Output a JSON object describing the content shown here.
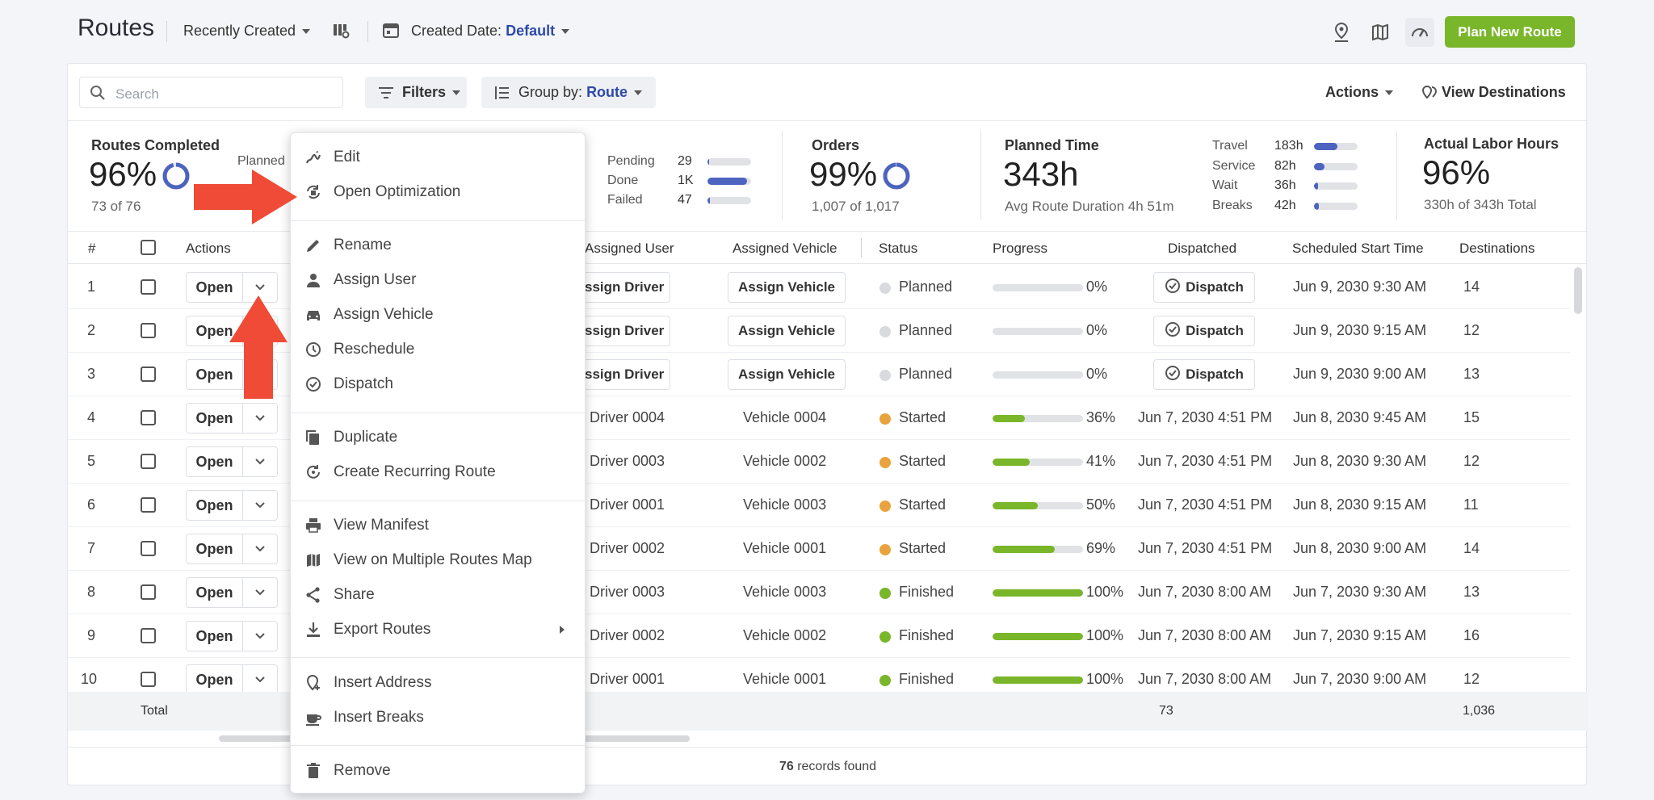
{
  "header": {
    "title": "Routes",
    "sort_label": "Recently Created",
    "date_filter_label": "Created Date:",
    "date_filter_value": "Default",
    "plan_button": "Plan New Route"
  },
  "toolbar": {
    "search_placeholder": "Search",
    "filters_label": "Filters",
    "group_by_label": "Group by:",
    "group_by_value": "Route",
    "actions_label": "Actions",
    "view_destinations_label": "View Destinations"
  },
  "stats": {
    "routes_completed": {
      "label": "Routes Completed",
      "value": "96%",
      "sub": "73 of 76",
      "planned_label": "Planned",
      "ring_fraction": 0.96
    },
    "destinations_metrics": [
      {
        "label": "Pending",
        "value": "29",
        "fraction": 0.03
      },
      {
        "label": "Done",
        "value": "1K",
        "fraction": 0.9
      },
      {
        "label": "Failed",
        "value": "47",
        "fraction": 0.05
      }
    ],
    "orders": {
      "label": "Orders",
      "value": "99%",
      "sub": "1,007 of 1,017",
      "ring_fraction": 0.99
    },
    "planned_time": {
      "label": "Planned Time",
      "value": "343h",
      "sub": "Avg Route Duration 4h 51m"
    },
    "time_metrics": [
      {
        "label": "Travel",
        "value": "183h",
        "fraction": 0.53
      },
      {
        "label": "Service",
        "value": "82h",
        "fraction": 0.24
      },
      {
        "label": "Wait",
        "value": "36h",
        "fraction": 0.1
      },
      {
        "label": "Breaks",
        "value": "42h",
        "fraction": 0.12
      }
    ],
    "labor": {
      "label": "Actual Labor Hours",
      "value": "96%",
      "sub": "330h of 343h Total"
    }
  },
  "table": {
    "columns": {
      "num": "#",
      "actions": "Actions",
      "user": "Assigned User",
      "vehicle": "Assigned Vehicle",
      "status": "Status",
      "progress": "Progress",
      "dispatched": "Dispatched",
      "start": "Scheduled Start Time",
      "destinations": "Destinations"
    },
    "open_label": "Open",
    "assign_driver_label": "Assign Driver",
    "assign_vehicle_label": "Assign Vehicle",
    "dispatch_label": "Dispatch",
    "rows": [
      {
        "num": "1",
        "user": "",
        "vehicle": "",
        "status": "Planned",
        "status_color": "#d9dadd",
        "progress": 0,
        "progress_text": "0%",
        "dispatched": "",
        "start": "Jun 9, 2030 9:30 AM",
        "dest": "14"
      },
      {
        "num": "2",
        "user": "",
        "vehicle": "",
        "status": "Planned",
        "status_color": "#d9dadd",
        "progress": 0,
        "progress_text": "0%",
        "dispatched": "",
        "start": "Jun 9, 2030 9:15 AM",
        "dest": "12"
      },
      {
        "num": "3",
        "user": "",
        "vehicle": "",
        "status": "Planned",
        "status_color": "#d9dadd",
        "progress": 0,
        "progress_text": "0%",
        "dispatched": "",
        "start": "Jun 9, 2030 9:00 AM",
        "dest": "13"
      },
      {
        "num": "4",
        "user": "Driver 0004",
        "vehicle": "Vehicle 0004",
        "status": "Started",
        "status_color": "#e9a33e",
        "progress": 0.36,
        "progress_text": "36%",
        "dispatched": "Jun 7, 2030 4:51 PM",
        "start": "Jun 8, 2030 9:45 AM",
        "dest": "15"
      },
      {
        "num": "5",
        "user": "Driver 0003",
        "vehicle": "Vehicle 0002",
        "status": "Started",
        "status_color": "#e9a33e",
        "progress": 0.41,
        "progress_text": "41%",
        "dispatched": "Jun 7, 2030 4:51 PM",
        "start": "Jun 8, 2030 9:30 AM",
        "dest": "12"
      },
      {
        "num": "6",
        "user": "Driver 0001",
        "vehicle": "Vehicle 0003",
        "status": "Started",
        "status_color": "#e9a33e",
        "progress": 0.5,
        "progress_text": "50%",
        "dispatched": "Jun 7, 2030 4:51 PM",
        "start": "Jun 8, 2030 9:15 AM",
        "dest": "11"
      },
      {
        "num": "7",
        "user": "Driver 0002",
        "vehicle": "Vehicle 0001",
        "status": "Started",
        "status_color": "#e9a33e",
        "progress": 0.69,
        "progress_text": "69%",
        "dispatched": "Jun 7, 2030 4:51 PM",
        "start": "Jun 8, 2030 9:00 AM",
        "dest": "14"
      },
      {
        "num": "8",
        "user": "Driver 0003",
        "vehicle": "Vehicle 0003",
        "status": "Finished",
        "status_color": "#79b62a",
        "progress": 1,
        "progress_text": "100%",
        "dispatched": "Jun 7, 2030 8:00 AM",
        "start": "Jun 7, 2030 9:30 AM",
        "dest": "13"
      },
      {
        "num": "9",
        "user": "Driver 0002",
        "vehicle": "Vehicle 0002",
        "status": "Finished",
        "status_color": "#79b62a",
        "progress": 1,
        "progress_text": "100%",
        "dispatched": "Jun 7, 2030 8:00 AM",
        "start": "Jun 7, 2030 9:15 AM",
        "dest": "16"
      },
      {
        "num": "10",
        "user": "Driver 0001",
        "vehicle": "Vehicle 0001",
        "status": "Finished",
        "status_color": "#79b62a",
        "progress": 1,
        "progress_text": "100%",
        "dispatched": "Jun 7, 2030 8:00 AM",
        "start": "Jun 7, 2030 9:00 AM",
        "dest": "12"
      }
    ],
    "total": {
      "label": "Total",
      "dispatched_total": "73",
      "destinations_total": "1,036"
    },
    "records_count": "76",
    "records_label": "records found"
  },
  "context_menu": {
    "items": [
      {
        "label": "Edit",
        "icon": "edit-route-icon"
      },
      {
        "label": "Open Optimization",
        "icon": "optimization-icon"
      },
      {
        "label": "Rename",
        "icon": "pencil-icon"
      },
      {
        "label": "Assign User",
        "icon": "user-icon"
      },
      {
        "label": "Assign Vehicle",
        "icon": "car-icon"
      },
      {
        "label": "Reschedule",
        "icon": "clock-icon"
      },
      {
        "label": "Dispatch",
        "icon": "dispatch-check-icon"
      },
      {
        "label": "Duplicate",
        "icon": "duplicate-icon"
      },
      {
        "label": "Create Recurring Route",
        "icon": "recurring-icon"
      },
      {
        "label": "View Manifest",
        "icon": "printer-icon"
      },
      {
        "label": "View on Multiple Routes Map",
        "icon": "map-icon"
      },
      {
        "label": "Share",
        "icon": "share-icon"
      },
      {
        "label": "Export Routes",
        "icon": "download-icon"
      },
      {
        "label": "Insert Address",
        "icon": "insert-address-icon"
      },
      {
        "label": "Insert Breaks",
        "icon": "coffee-icon"
      },
      {
        "label": "Remove",
        "icon": "trash-icon"
      }
    ]
  },
  "colors": {
    "accent": "#79b62a",
    "link": "#2d4aa8",
    "bar": "#4d63c0",
    "arrow": "#ef4b37"
  }
}
